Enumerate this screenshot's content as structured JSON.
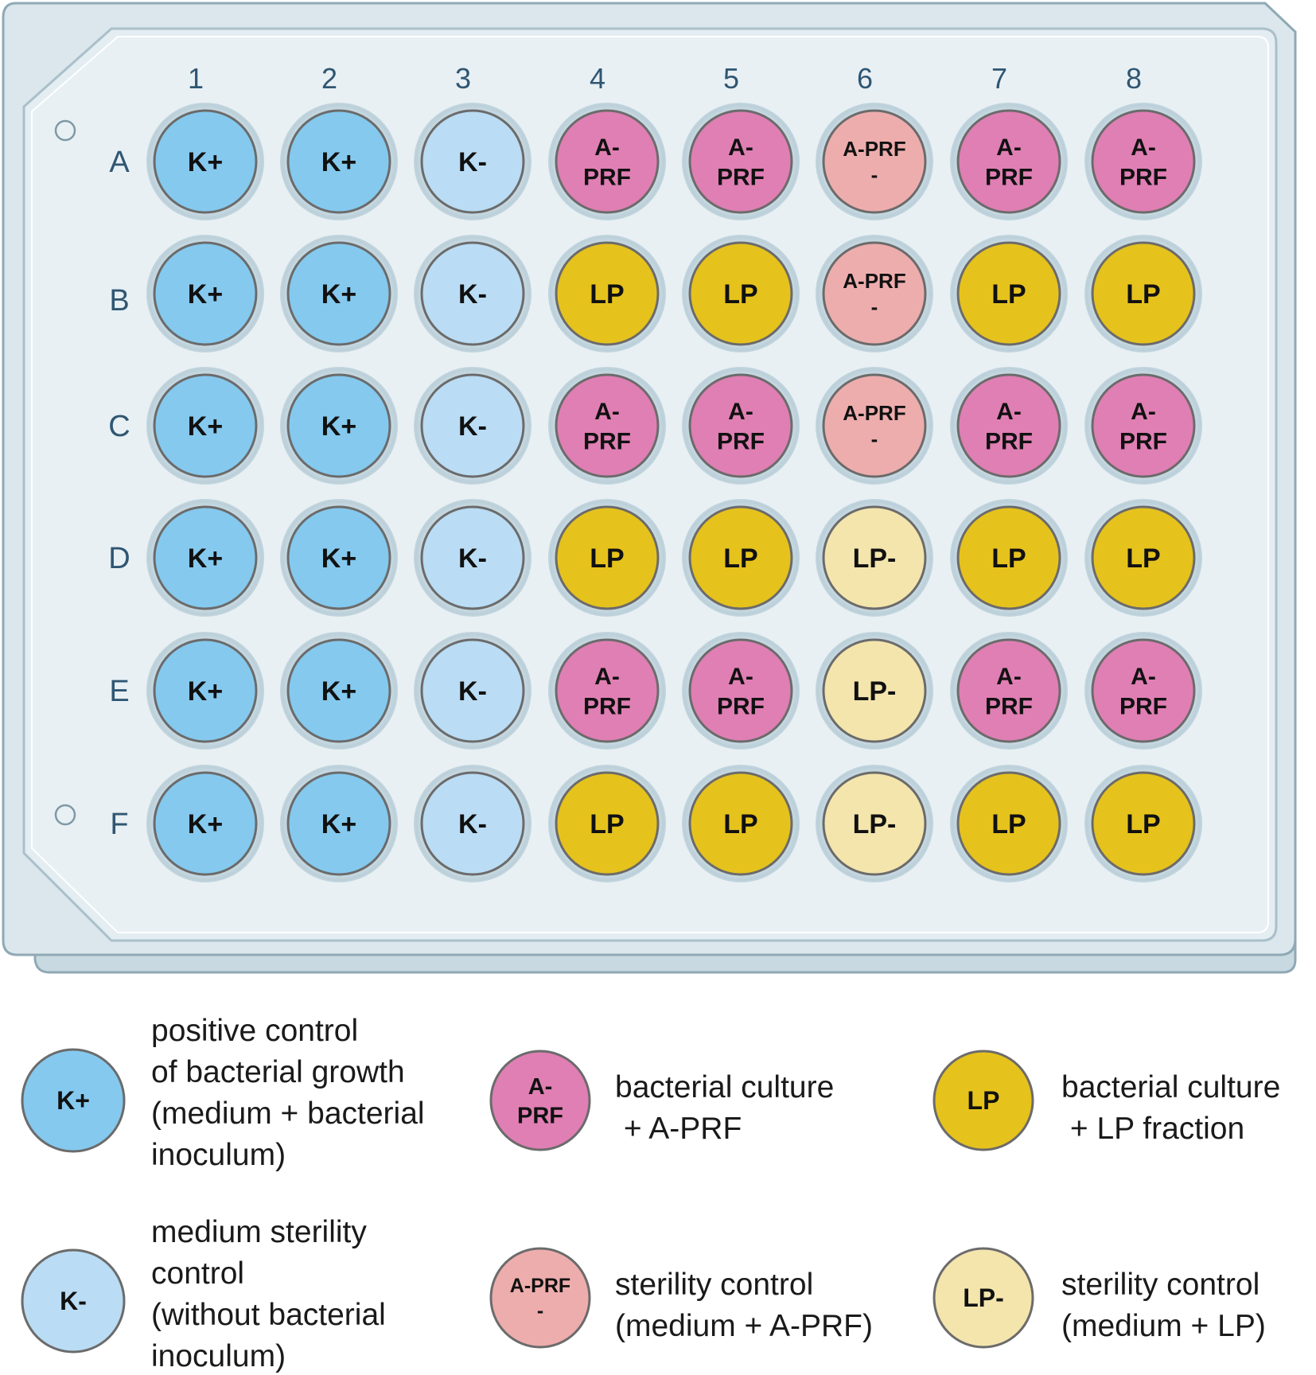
{
  "plate": {
    "columns": [
      "1",
      "2",
      "3",
      "4",
      "5",
      "6",
      "7",
      "8"
    ],
    "rows": [
      "A",
      "B",
      "C",
      "D",
      "E",
      "F"
    ]
  },
  "well_types": {
    "kplus": {
      "label": "K+",
      "color": "#85c9ee"
    },
    "kminus": {
      "label": "K-",
      "color": "#badcf4"
    },
    "aprf": {
      "label": "A-\nPRF",
      "color": "#e07fb4"
    },
    "aprfneg": {
      "label": "A-PRF\n-",
      "color": "#eeadad"
    },
    "lp": {
      "label": "LP",
      "color": "#e6c21c"
    },
    "lpneg": {
      "label": "LP-",
      "color": "#f4e5ad"
    }
  },
  "wells": [
    [
      "kplus",
      "kplus",
      "kminus",
      "aprf",
      "aprf",
      "aprfneg",
      "aprf",
      "aprf"
    ],
    [
      "kplus",
      "kplus",
      "kminus",
      "lp",
      "lp",
      "aprfneg",
      "lp",
      "lp"
    ],
    [
      "kplus",
      "kplus",
      "kminus",
      "aprf",
      "aprf",
      "aprfneg",
      "aprf",
      "aprf"
    ],
    [
      "kplus",
      "kplus",
      "kminus",
      "lp",
      "lp",
      "lpneg",
      "lp",
      "lp"
    ],
    [
      "kplus",
      "kplus",
      "kminus",
      "aprf",
      "aprf",
      "lpneg",
      "aprf",
      "aprf"
    ],
    [
      "kplus",
      "kplus",
      "kminus",
      "lp",
      "lp",
      "lpneg",
      "lp",
      "lp"
    ]
  ],
  "legend": [
    {
      "type": "kplus",
      "text": [
        "positive control",
        "of bacterial growth",
        "(medium + bacterial",
        "inoculum)"
      ]
    },
    {
      "type": "aprf",
      "text": [
        "bacterial culture",
        " + A-PRF"
      ]
    },
    {
      "type": "lp",
      "text": [
        "bacterial culture",
        " + LP fraction"
      ]
    },
    {
      "type": "kminus",
      "text": [
        "medium sterility",
        "control",
        "(without bacterial",
        "inoculum)"
      ]
    },
    {
      "type": "aprfneg",
      "text": [
        "sterility control",
        "(medium + A-PRF)"
      ]
    },
    {
      "type": "lpneg",
      "text": [
        "sterility control",
        "(medium + LP)"
      ]
    }
  ],
  "colors": {
    "plate_outer": "#dbe7ec",
    "plate_inner": "#e6eff3",
    "plate_border": "#8fa9b5",
    "well_border": "#6b6b6b",
    "axis_label": "#2f5672"
  }
}
